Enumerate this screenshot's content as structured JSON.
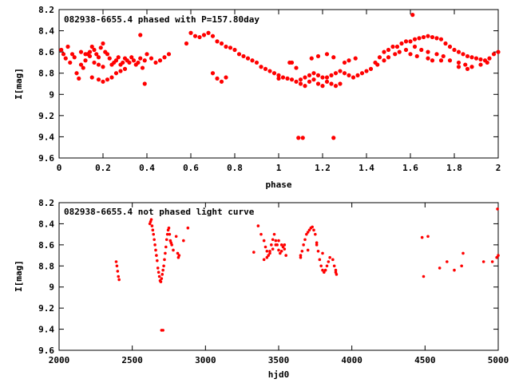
{
  "chart_data": [
    {
      "type": "scatter",
      "title": "082938-6655.4 phased with P=157.80day",
      "xlabel": "phase",
      "ylabel": "I[mag]",
      "xlim": [
        0,
        2
      ],
      "ylim": [
        9.6,
        8.2
      ],
      "y_inverted": true,
      "xticks": [
        0,
        0.2,
        0.4,
        0.6,
        0.8,
        1,
        1.2,
        1.4,
        1.6,
        1.8,
        2
      ],
      "xtick_labels": [
        "0",
        "0.2",
        "0.4",
        "0.6",
        "0.8",
        "1",
        "1.2",
        "1.4",
        "1.6",
        "1.8",
        "2"
      ],
      "yticks": [
        8.2,
        8.4,
        8.6,
        8.8,
        9,
        9.2,
        9.4,
        9.6
      ],
      "ytick_labels": [
        "8.2",
        "8.4",
        "8.6",
        "8.8",
        "9",
        "9.2",
        "9.4",
        "9.6"
      ],
      "grid": false,
      "marker_color": "#ff0000",
      "series": [
        {
          "x": [
            0.01,
            0.02,
            0.03,
            0.04,
            0.05,
            0.06,
            0.07,
            0.08,
            0.09,
            0.1,
            0.11,
            0.12,
            0.13,
            0.14,
            0.15,
            0.16,
            0.17,
            0.18,
            0.19,
            0.2,
            0.21,
            0.22,
            0.23,
            0.24,
            0.25,
            0.26,
            0.27,
            0.28,
            0.29,
            0.3,
            0.31,
            0.32,
            0.33,
            0.34,
            0.35,
            0.36,
            0.37,
            0.38,
            0.39,
            0.4,
            0.42,
            0.44,
            0.46,
            0.48,
            0.5,
            0.15,
            0.18,
            0.2,
            0.22,
            0.24,
            0.26,
            0.28,
            0.3,
            0.1,
            0.12,
            0.14,
            0.16,
            0.18,
            0.2,
            0.37,
            0.39,
            0.58,
            0.6,
            0.62,
            0.64,
            0.66,
            0.68,
            0.7,
            0.72,
            0.74,
            0.76,
            0.78,
            0.8,
            0.82,
            0.84,
            0.86,
            0.88,
            0.9,
            0.92,
            0.94,
            0.96,
            0.98,
            1.0,
            1.02,
            1.04,
            1.06,
            1.08,
            1.1,
            1.12,
            1.14,
            1.16,
            1.18,
            1.2,
            1.22,
            1.24,
            1.26,
            1.28,
            1.3,
            1.32,
            1.34,
            1.36,
            1.38,
            1.4,
            1.42,
            0.7,
            0.72,
            0.74,
            0.76,
            1.06,
            1.08,
            1.1,
            1.12,
            1.14,
            1.16,
            1.18,
            1.2,
            1.22,
            1.24,
            1.26,
            1.28,
            1.0,
            1.05,
            1.15,
            1.18,
            1.22,
            1.25,
            1.3,
            1.32,
            1.35,
            1.09,
            1.11,
            1.25,
            1.44,
            1.46,
            1.48,
            1.5,
            1.52,
            1.54,
            1.56,
            1.58,
            1.6,
            1.62,
            1.64,
            1.66,
            1.68,
            1.7,
            1.72,
            1.74,
            1.76,
            1.78,
            1.8,
            1.82,
            1.84,
            1.86,
            1.88,
            1.9,
            1.92,
            1.94,
            1.96,
            1.98,
            2.0,
            1.45,
            1.48,
            1.5,
            1.53,
            1.55,
            1.58,
            1.62,
            1.65,
            1.68,
            1.72,
            1.75,
            1.78,
            1.82,
            1.85,
            1.88,
            1.92,
            1.95,
            1.6,
            1.63,
            1.68,
            1.7,
            1.74,
            1.82,
            1.86,
            1.61
          ],
          "y": [
            8.58,
            8.62,
            8.66,
            8.55,
            8.7,
            8.62,
            8.65,
            8.8,
            8.85,
            8.72,
            8.75,
            8.68,
            8.62,
            8.6,
            8.55,
            8.58,
            8.62,
            8.65,
            8.56,
            8.52,
            8.6,
            8.62,
            8.66,
            8.72,
            8.7,
            8.68,
            8.65,
            8.72,
            8.7,
            8.66,
            8.68,
            8.7,
            8.65,
            8.68,
            8.72,
            8.7,
            8.66,
            8.75,
            8.68,
            8.62,
            8.66,
            8.7,
            8.68,
            8.65,
            8.62,
            8.84,
            8.86,
            8.88,
            8.86,
            8.84,
            8.8,
            8.78,
            8.76,
            8.6,
            8.62,
            8.64,
            8.7,
            8.72,
            8.74,
            8.44,
            8.9,
            8.52,
            8.42,
            8.45,
            8.46,
            8.44,
            8.42,
            8.45,
            8.5,
            8.52,
            8.55,
            8.56,
            8.58,
            8.62,
            8.64,
            8.66,
            8.68,
            8.7,
            8.74,
            8.76,
            8.78,
            8.8,
            8.82,
            8.84,
            8.85,
            8.86,
            8.88,
            8.86,
            8.84,
            8.82,
            8.8,
            8.82,
            8.84,
            8.84,
            8.82,
            8.8,
            8.78,
            8.8,
            8.82,
            8.84,
            8.82,
            8.8,
            8.78,
            8.76,
            8.8,
            8.85,
            8.88,
            8.84,
            8.7,
            8.75,
            8.9,
            8.92,
            8.88,
            8.86,
            8.9,
            8.92,
            8.88,
            8.9,
            8.92,
            8.9,
            8.85,
            8.7,
            8.66,
            8.64,
            8.62,
            8.65,
            8.7,
            8.68,
            8.66,
            9.41,
            9.41,
            9.41,
            8.7,
            8.65,
            8.6,
            8.58,
            8.55,
            8.55,
            8.52,
            8.5,
            8.5,
            8.48,
            8.47,
            8.46,
            8.45,
            8.46,
            8.47,
            8.48,
            8.52,
            8.55,
            8.58,
            8.6,
            8.62,
            8.64,
            8.65,
            8.66,
            8.67,
            8.68,
            8.66,
            8.62,
            8.6,
            8.72,
            8.68,
            8.65,
            8.62,
            8.6,
            8.58,
            8.55,
            8.58,
            8.6,
            8.62,
            8.64,
            8.68,
            8.7,
            8.72,
            8.74,
            8.72,
            8.7,
            8.62,
            8.64,
            8.66,
            8.68,
            8.68,
            8.74,
            8.76,
            8.25
          ]
        }
      ]
    },
    {
      "type": "scatter",
      "title": "082938-6655.4 not phased light curve",
      "xlabel": "hjd0",
      "ylabel": "I[mag]",
      "xlim": [
        2000,
        5000
      ],
      "ylim": [
        9.6,
        8.2
      ],
      "y_inverted": true,
      "xticks": [
        2000,
        2500,
        3000,
        3500,
        4000,
        4500,
        5000
      ],
      "xtick_labels": [
        "2000",
        "2500",
        "3000",
        "3500",
        "4000",
        "4500",
        "5000"
      ],
      "yticks": [
        8.2,
        8.4,
        8.6,
        8.8,
        9,
        9.2,
        9.4,
        9.6
      ],
      "ytick_labels": [
        "8.2",
        "8.4",
        "8.6",
        "8.8",
        "9",
        "9.2",
        "9.4",
        "9.6"
      ],
      "grid": false,
      "marker_color": "#ff0000",
      "series": [
        {
          "x": [
            2390,
            2395,
            2400,
            2405,
            2410,
            2620,
            2625,
            2630,
            2635,
            2640,
            2645,
            2650,
            2655,
            2660,
            2665,
            2670,
            2675,
            2680,
            2685,
            2690,
            2695,
            2700,
            2705,
            2710,
            2715,
            2720,
            2725,
            2730,
            2735,
            2740,
            2745,
            2750,
            2755,
            2760,
            2765,
            2770,
            2780,
            2800,
            2810,
            2815,
            2820,
            2850,
            2880,
            2700,
            2710,
            3330,
            3360,
            3380,
            3400,
            3410,
            3420,
            3430,
            3440,
            3450,
            3460,
            3470,
            3480,
            3490,
            3500,
            3510,
            3520,
            3530,
            3540,
            3550,
            3400,
            3420,
            3440,
            3460,
            3480,
            3500,
            3520,
            3540,
            3650,
            3660,
            3670,
            3680,
            3690,
            3700,
            3710,
            3720,
            3730,
            3740,
            3750,
            3760,
            3770,
            3780,
            3790,
            3800,
            3810,
            3820,
            3830,
            3840,
            3850,
            3870,
            3880,
            3890,
            3890,
            3895,
            3650,
            3700,
            3760,
            3800,
            4480,
            4490,
            4520,
            4600,
            4650,
            4700,
            4750,
            4760,
            4900,
            4960,
            4990,
            4995,
            5000
          ],
          "y": [
            8.76,
            8.8,
            8.85,
            8.9,
            8.93,
            8.4,
            8.38,
            8.36,
            8.42,
            8.46,
            8.5,
            8.55,
            8.6,
            8.65,
            8.7,
            8.75,
            8.82,
            8.86,
            8.9,
            8.94,
            8.95,
            8.92,
            8.88,
            8.84,
            8.8,
            8.74,
            8.68,
            8.62,
            8.55,
            8.5,
            8.46,
            8.44,
            8.5,
            8.56,
            8.58,
            8.6,
            8.65,
            8.52,
            8.68,
            8.72,
            8.7,
            8.56,
            8.44,
            9.41,
            9.41,
            8.67,
            8.42,
            8.5,
            8.56,
            8.62,
            8.66,
            8.7,
            8.66,
            8.6,
            8.55,
            8.5,
            8.56,
            8.6,
            8.65,
            8.68,
            8.66,
            8.62,
            8.6,
            8.7,
            8.74,
            8.72,
            8.68,
            8.64,
            8.6,
            8.56,
            8.6,
            8.64,
            8.72,
            8.66,
            8.6,
            8.55,
            8.5,
            8.48,
            8.46,
            8.44,
            8.43,
            8.46,
            8.5,
            8.58,
            8.66,
            8.74,
            8.8,
            8.84,
            8.86,
            8.84,
            8.8,
            8.76,
            8.72,
            8.74,
            8.8,
            8.84,
            8.86,
            8.88,
            8.7,
            8.65,
            8.6,
            8.68,
            8.53,
            8.9,
            8.52,
            8.82,
            8.76,
            8.84,
            8.8,
            8.68,
            8.76,
            8.76,
            8.72,
            8.26,
            8.7
          ]
        }
      ]
    }
  ]
}
